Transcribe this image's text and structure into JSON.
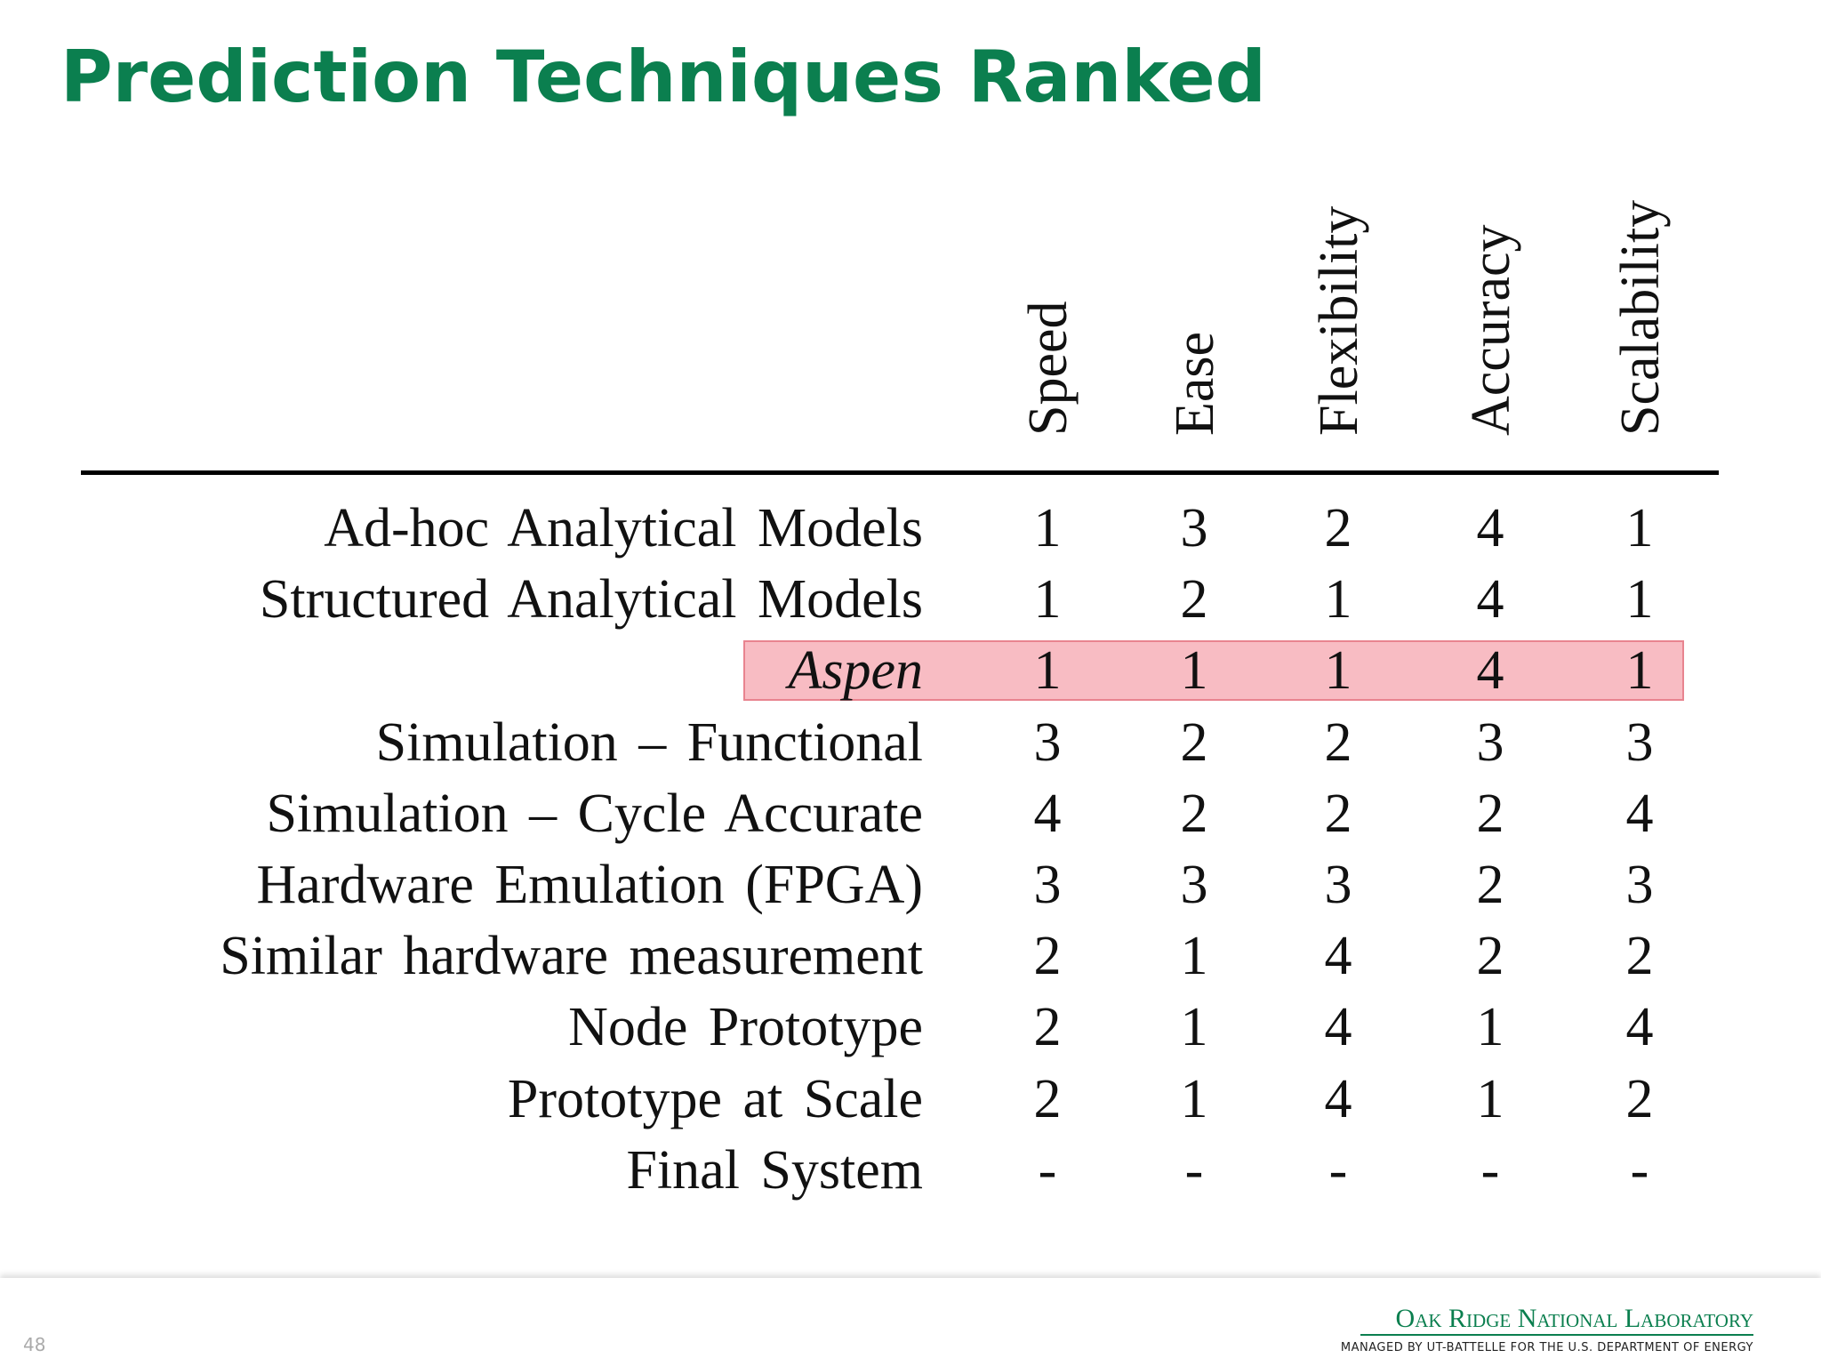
{
  "header": {
    "title": "Prediction Techniques Ranked"
  },
  "table": {
    "columns": [
      "Speed",
      "Ease",
      "Flexibility",
      "Accuracy",
      "Scalability"
    ],
    "rows": [
      {
        "label": "Ad-hoc Analytical Models",
        "values": [
          1,
          3,
          2,
          4,
          1
        ]
      },
      {
        "label": "Structured Analytical Models",
        "values": [
          1,
          2,
          1,
          4,
          1
        ]
      },
      {
        "label": "Aspen",
        "values": [
          1,
          1,
          1,
          4,
          1
        ],
        "highlight": true
      },
      {
        "label": "Simulation – Functional",
        "values": [
          3,
          2,
          2,
          3,
          3
        ]
      },
      {
        "label": "Simulation – Cycle Accurate",
        "values": [
          4,
          2,
          2,
          2,
          4
        ]
      },
      {
        "label": "Hardware Emulation (FPGA)",
        "values": [
          3,
          3,
          3,
          2,
          3
        ]
      },
      {
        "label": "Similar hardware measurement",
        "values": [
          2,
          1,
          4,
          2,
          2
        ]
      },
      {
        "label": "Node Prototype",
        "values": [
          2,
          1,
          4,
          1,
          4
        ]
      },
      {
        "label": "Prototype at Scale",
        "values": [
          2,
          1,
          4,
          1,
          2
        ]
      },
      {
        "label": "Final System",
        "values": [
          "-",
          "-",
          "-",
          "-",
          "-"
        ]
      }
    ]
  },
  "footer": {
    "page_number": "48",
    "logo": "Oak Ridge National Laboratory",
    "logo_subtitle": "MANAGED BY UT-BATTELLE FOR THE U.S. DEPARTMENT OF ENERGY"
  }
}
